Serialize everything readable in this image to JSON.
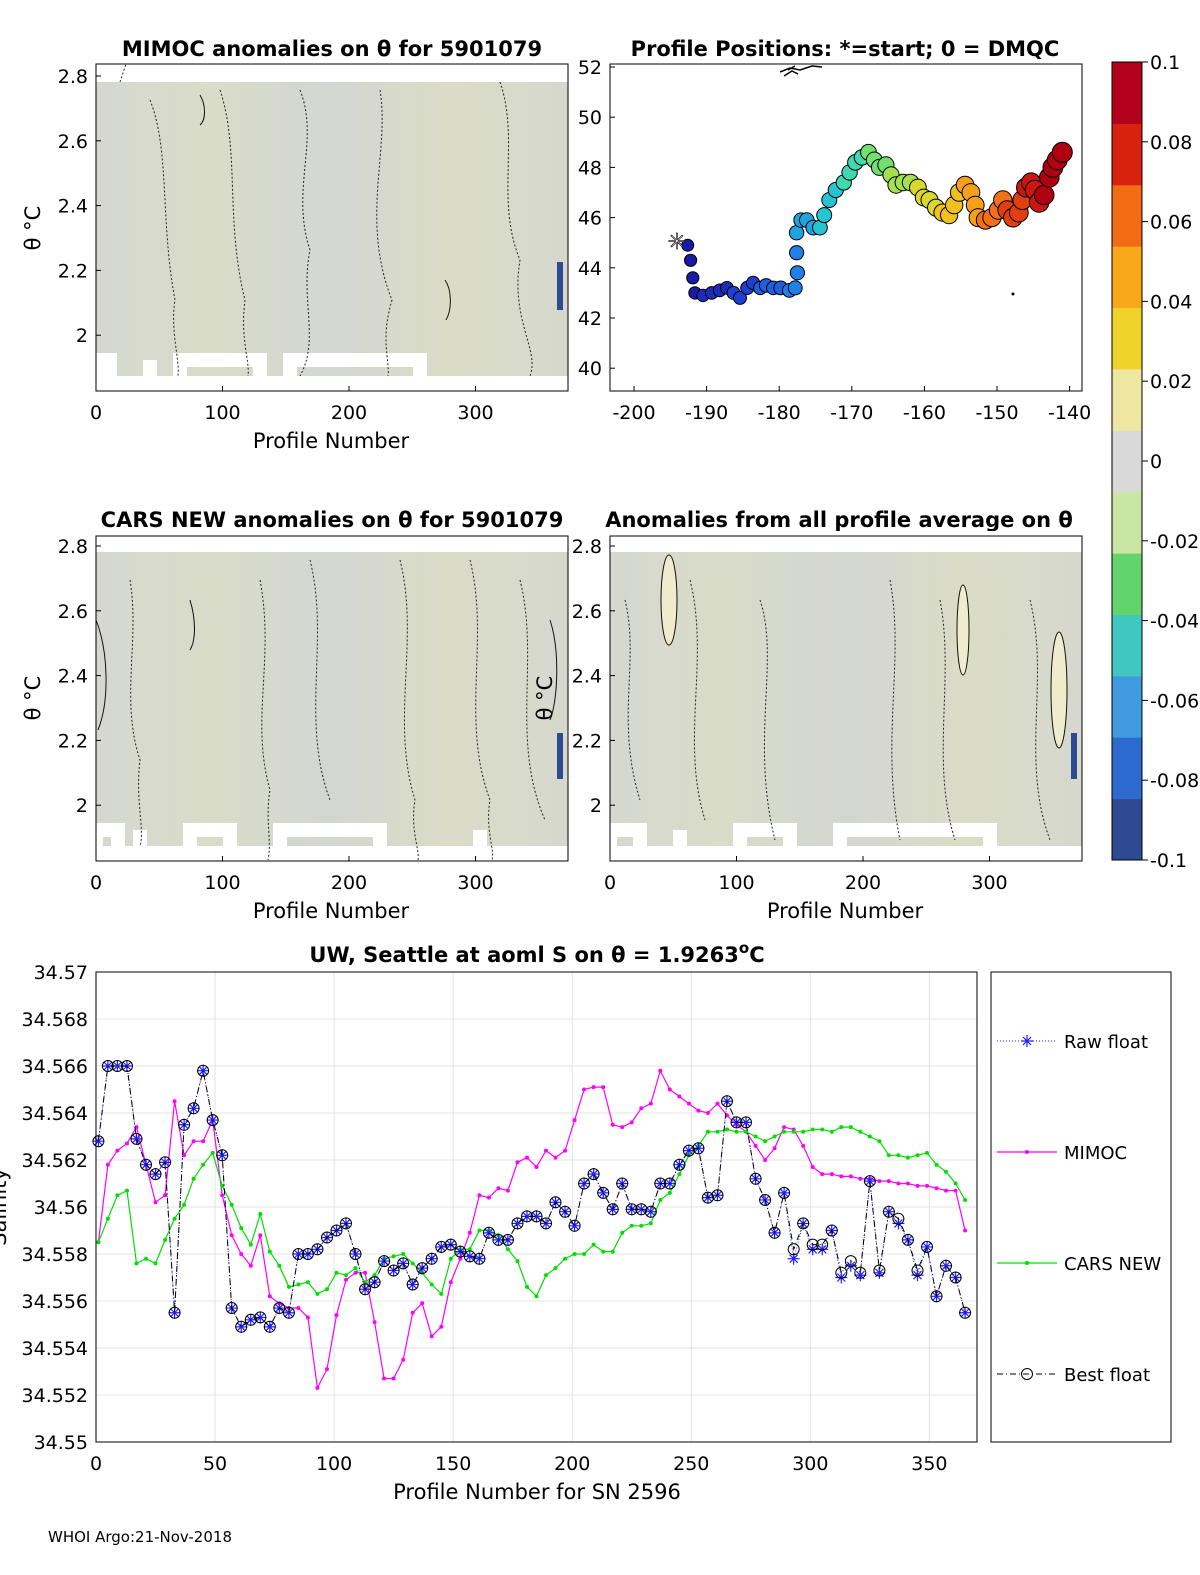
{
  "footer": "WHOI Argo:21-Nov-2018",
  "colorbar": {
    "ticks": [
      "0.1",
      "0.08",
      "0.06",
      "0.04",
      "0.02",
      "0",
      "-0.02",
      "-0.04",
      "-0.06",
      "-0.08",
      "-0.1"
    ],
    "colors": [
      "#2d4a92",
      "#2d6ad0",
      "#3f9ae0",
      "#3fc7c0",
      "#63d36b",
      "#c9e6a5",
      "#d9d9d9",
      "#efe6a2",
      "#f0d32a",
      "#f8a818",
      "#f26c16",
      "#d8210f",
      "#b3001c"
    ]
  },
  "panels": {
    "mimoc": {
      "title": "MIMOC anomalies on θ  for 5901079",
      "ylabel": "θ °C",
      "xlabel": "Profile Number",
      "yticks": [
        "2.8",
        "2.6",
        "2.4",
        "2.2",
        "2"
      ],
      "xticks": [
        "0",
        "100",
        "200",
        "300"
      ]
    },
    "positions": {
      "title": "Profile Positions: *=start; 0 = DMQC",
      "yticks": [
        "52",
        "50",
        "48",
        "46",
        "44",
        "42",
        "40"
      ],
      "xticks": [
        "-200",
        "-190",
        "-180",
        "-170",
        "-160",
        "-150",
        "-140"
      ]
    },
    "cars": {
      "title": "CARS NEW anomalies on θ for 5901079",
      "ylabel": "θ °C",
      "xlabel": "Profile Number",
      "yticks": [
        "2.8",
        "2.6",
        "2.4",
        "2.2",
        "2"
      ],
      "xticks": [
        "0",
        "100",
        "200",
        "300"
      ]
    },
    "avg": {
      "title": "Anomalies from all profile average on θ",
      "ylabel": "θ °C",
      "xlabel": "Profile Number",
      "yticks": [
        "2.8",
        "2.6",
        "2.4",
        "2.2",
        "2"
      ],
      "xticks": [
        "0",
        "100",
        "200",
        "300"
      ]
    }
  },
  "chart_data": {
    "type": "line",
    "title": "UW, Seattle at aoml S on θ = 1.9263",
    "title_sup": "o",
    "title_unit": "C",
    "xlabel": "Profile Number for SN 2596",
    "ylabel": "Salinity",
    "xlim": [
      0,
      370
    ],
    "ylim": [
      34.55,
      34.57
    ],
    "yticks": [
      "34.57",
      "34.568",
      "34.566",
      "34.564",
      "34.562",
      "34.56",
      "34.558",
      "34.556",
      "34.554",
      "34.552",
      "34.55"
    ],
    "xticks": [
      "0",
      "50",
      "100",
      "150",
      "200",
      "250",
      "300",
      "350"
    ],
    "legend_position": "right-outside",
    "legend": [
      "Raw float",
      "MIMOC",
      "CARS NEW",
      "Best float"
    ],
    "x": [
      1,
      5,
      9,
      13,
      17,
      21,
      25,
      29,
      33,
      37,
      41,
      45,
      49,
      53,
      57,
      61,
      65,
      69,
      73,
      77,
      81,
      85,
      89,
      93,
      97,
      101,
      105,
      109,
      113,
      117,
      121,
      125,
      129,
      133,
      137,
      141,
      145,
      149,
      153,
      157,
      161,
      165,
      169,
      173,
      177,
      181,
      185,
      189,
      193,
      197,
      201,
      205,
      209,
      213,
      217,
      221,
      225,
      229,
      233,
      237,
      241,
      245,
      249,
      253,
      257,
      261,
      265,
      269,
      273,
      277,
      281,
      285,
      289,
      293,
      297,
      301,
      305,
      309,
      313,
      317,
      321,
      325,
      329,
      333,
      337,
      341,
      345,
      349,
      353,
      357,
      361,
      365
    ],
    "series": [
      {
        "name": "Raw float",
        "color": "#1f1fff",
        "values": [
          34.5628,
          34.566,
          34.566,
          34.566,
          34.5629,
          34.5618,
          34.5614,
          34.5619,
          34.5555,
          34.5635,
          34.5642,
          34.5658,
          34.5637,
          34.5622,
          34.5557,
          34.5549,
          34.5552,
          34.5553,
          34.5549,
          34.5557,
          34.5555,
          34.558,
          34.558,
          34.5582,
          34.5587,
          34.559,
          34.5593,
          34.558,
          34.5565,
          34.5568,
          34.5577,
          34.5573,
          34.5576,
          34.5567,
          34.5574,
          34.5578,
          34.5583,
          34.5584,
          34.5581,
          34.5579,
          34.5578,
          34.5589,
          34.5586,
          34.5586,
          34.5593,
          34.5596,
          34.5596,
          34.5593,
          34.5602,
          34.5598,
          34.5592,
          34.561,
          34.5614,
          34.5606,
          34.5599,
          34.561,
          34.5599,
          34.5599,
          34.5598,
          34.561,
          34.561,
          34.5618,
          34.5624,
          34.5625,
          34.5604,
          34.5605,
          34.5645,
          34.5636,
          34.5636,
          34.5612,
          34.5603,
          34.5589,
          34.5606,
          34.5578,
          34.5593,
          34.5582,
          34.5582,
          34.559,
          34.557,
          34.5575,
          34.5571,
          34.5611,
          34.5572,
          34.5598,
          34.5593,
          34.5586,
          34.5571,
          34.5583,
          34.5562,
          34.5575,
          34.557,
          34.5555
        ]
      },
      {
        "name": "MIMOC",
        "color": "#ff00ff",
        "values": [
          34.5585,
          34.5618,
          34.5624,
          34.5627,
          34.5634,
          34.5618,
          34.5602,
          34.5605,
          34.5645,
          34.5622,
          34.5628,
          34.5628,
          34.5637,
          34.5605,
          34.5588,
          34.558,
          34.5575,
          34.5588,
          34.5562,
          34.5559,
          34.5557,
          34.5557,
          34.5553,
          34.5523,
          34.5531,
          34.5554,
          34.5569,
          34.5572,
          34.5572,
          34.5551,
          34.5527,
          34.5527,
          34.5535,
          34.5555,
          34.5559,
          34.5545,
          34.5549,
          34.5568,
          34.5578,
          34.5589,
          34.5605,
          34.5604,
          34.5608,
          34.5607,
          34.5619,
          34.5621,
          34.5617,
          34.5624,
          34.5621,
          34.5624,
          34.5637,
          34.565,
          34.5651,
          34.5651,
          34.5635,
          34.5634,
          34.5636,
          34.5642,
          34.5644,
          34.5658,
          34.565,
          34.5647,
          34.5644,
          34.5641,
          34.564,
          34.5644,
          34.5639,
          34.5635,
          34.5632,
          34.5626,
          34.562,
          34.5625,
          34.5634,
          34.5633,
          34.5626,
          34.5617,
          34.5614,
          34.5614,
          34.5613,
          34.5613,
          34.5612,
          34.5612,
          34.5611,
          34.5611,
          34.561,
          34.561,
          34.5609,
          34.5609,
          34.5608,
          34.5607,
          34.5607,
          34.559
        ]
      },
      {
        "name": "CARS NEW",
        "color": "#00e000",
        "values": [
          34.5585,
          34.5595,
          34.5605,
          34.5607,
          34.5576,
          34.5578,
          34.5576,
          34.5586,
          34.5595,
          34.5601,
          34.5612,
          34.5618,
          34.5623,
          34.5609,
          34.5601,
          34.5591,
          34.5584,
          34.5597,
          34.5581,
          34.5575,
          34.5566,
          34.5567,
          34.5568,
          34.5563,
          34.5565,
          34.5572,
          34.5571,
          34.5574,
          34.5568,
          34.5571,
          34.5578,
          34.5579,
          34.558,
          34.5576,
          34.5572,
          34.5567,
          34.5563,
          34.5578,
          34.5582,
          34.5582,
          34.559,
          34.559,
          34.5588,
          34.5582,
          34.5577,
          34.5566,
          34.5562,
          34.5571,
          34.5574,
          34.5578,
          34.558,
          34.558,
          34.5584,
          34.5581,
          34.5581,
          34.5589,
          34.5592,
          34.5592,
          34.5593,
          34.5603,
          34.5606,
          34.5614,
          34.5622,
          34.5626,
          34.5632,
          34.5632,
          34.5633,
          34.5632,
          34.5632,
          34.563,
          34.5628,
          34.563,
          34.5632,
          34.5632,
          34.5632,
          34.5633,
          34.5633,
          34.5632,
          34.5634,
          34.5634,
          34.5632,
          34.563,
          34.5628,
          34.5622,
          34.5622,
          34.5621,
          34.5622,
          34.5623,
          34.5618,
          34.5615,
          34.561,
          34.5603
        ]
      },
      {
        "name": "Best float",
        "color": "#000000",
        "values": [
          34.5628,
          34.566,
          34.566,
          34.566,
          34.5629,
          34.5618,
          34.5614,
          34.5619,
          34.5555,
          34.5635,
          34.5642,
          34.5658,
          34.5637,
          34.5622,
          34.5557,
          34.5549,
          34.5552,
          34.5553,
          34.5549,
          34.5557,
          34.5555,
          34.558,
          34.558,
          34.5582,
          34.5587,
          34.559,
          34.5593,
          34.558,
          34.5565,
          34.5568,
          34.5577,
          34.5573,
          34.5576,
          34.5567,
          34.5574,
          34.5578,
          34.5583,
          34.5584,
          34.5581,
          34.5579,
          34.5578,
          34.5589,
          34.5586,
          34.5586,
          34.5593,
          34.5596,
          34.5596,
          34.5593,
          34.5602,
          34.5598,
          34.5592,
          34.561,
          34.5614,
          34.5606,
          34.5599,
          34.561,
          34.5599,
          34.5599,
          34.5598,
          34.561,
          34.561,
          34.5618,
          34.5624,
          34.5625,
          34.5604,
          34.5605,
          34.5645,
          34.5636,
          34.5636,
          34.5612,
          34.5603,
          34.5589,
          34.5606,
          34.5582,
          34.5593,
          34.5584,
          34.5584,
          34.559,
          34.5572,
          34.5577,
          34.5572,
          34.5611,
          34.5573,
          34.5598,
          34.5595,
          34.5586,
          34.5573,
          34.5583,
          34.5562,
          34.5575,
          34.557,
          34.5555
        ]
      }
    ]
  }
}
